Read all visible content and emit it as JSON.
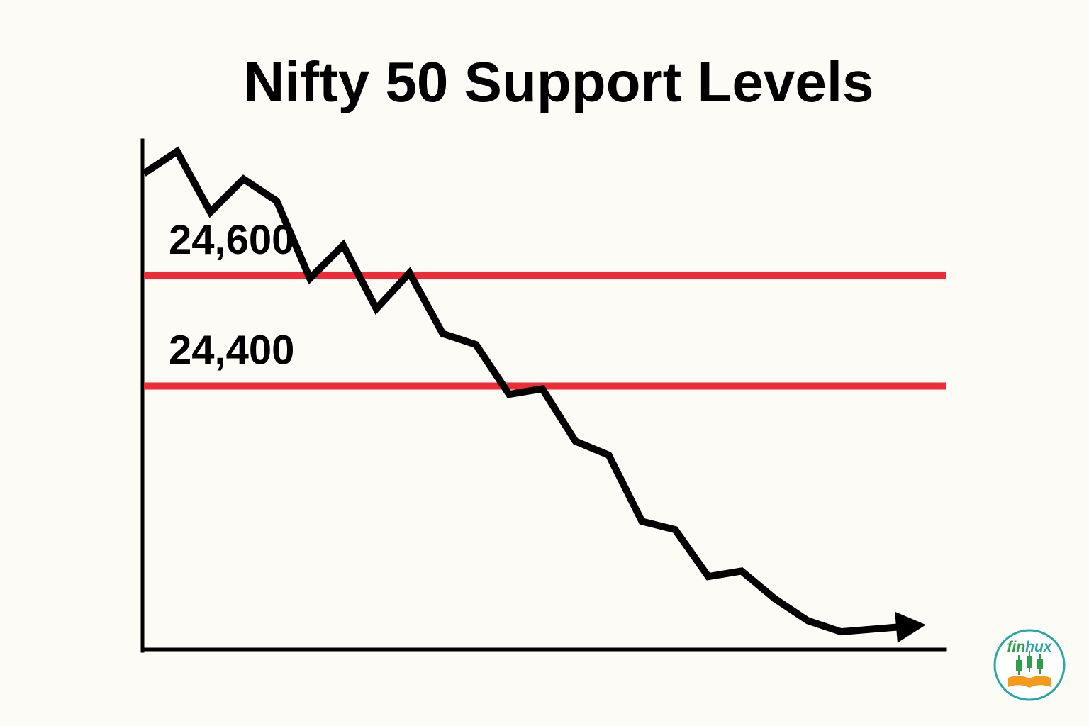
{
  "chart_data": {
    "type": "line",
    "title": "Nifty 50 Support Levels",
    "xlabel": "",
    "ylabel": "",
    "ylim": [
      23950,
      24800
    ],
    "grid": false,
    "x": [
      0,
      1,
      2,
      3,
      4,
      5,
      6,
      7,
      8,
      9,
      10,
      11,
      12,
      13,
      14,
      15,
      16,
      17,
      18,
      19,
      20,
      21,
      22,
      23
    ],
    "series": [
      {
        "values": [
          24785,
          24825,
          24715,
          24775,
          24735,
          24595,
          24655,
          24540,
          24605,
          24495,
          24475,
          24385,
          24395,
          24300,
          24275,
          24155,
          24140,
          24055,
          24065,
          24015,
          23975,
          23955,
          23960,
          23965
        ],
        "color": "#000000",
        "end_marker": "arrow-down-right"
      }
    ],
    "reference_lines": [
      {
        "value": 24600,
        "label": "24,600",
        "color": "#ef2b36"
      },
      {
        "value": 24400,
        "label": "24,400",
        "color": "#ef2b36"
      }
    ]
  },
  "logo": {
    "text": "finhux",
    "icon": "candlestick-book-icon",
    "colors": {
      "ring": "#2aa6a6",
      "candles": "#2e9e4a",
      "book": "#f39a1c",
      "text_fin": "#2e9e4a",
      "text_hux": "#2aa6a6"
    }
  }
}
